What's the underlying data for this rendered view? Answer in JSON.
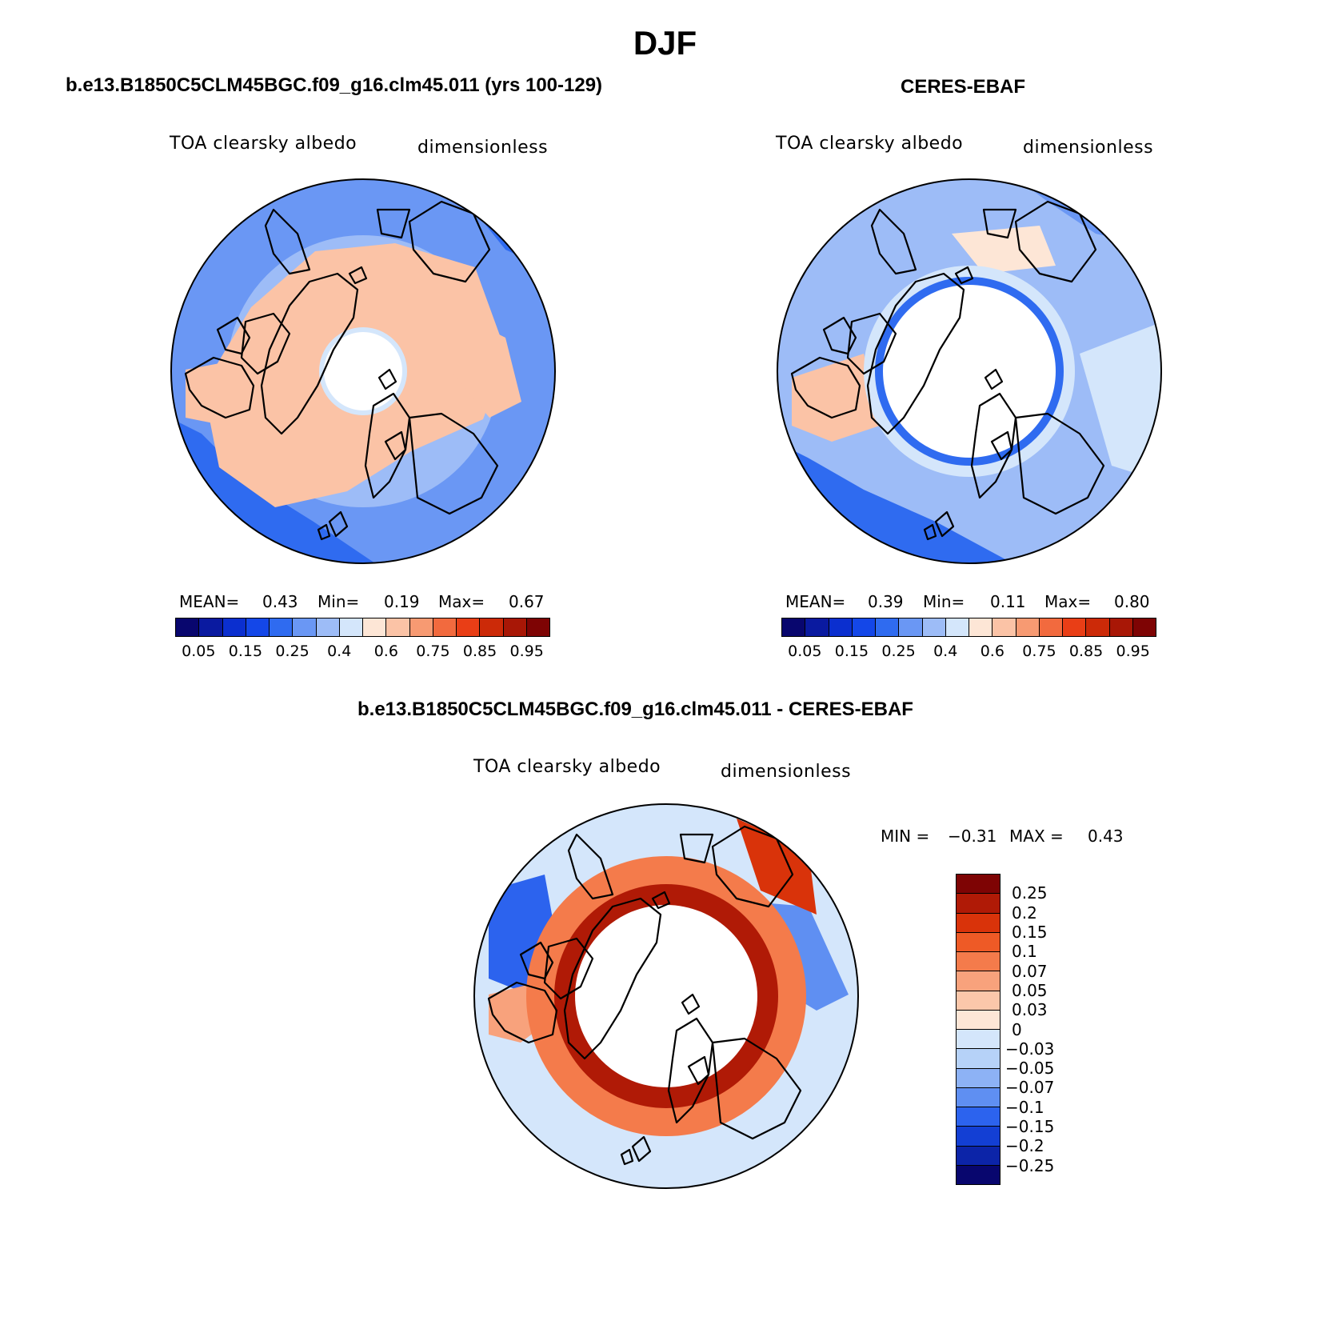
{
  "page": {
    "title": "DJF"
  },
  "chart_data": [
    {
      "type": "heatmap",
      "projection": "north polar stereographic",
      "title": "b.e13.B1850C5CLM45BGC.f09_g16.clm45.011 (yrs 100-129)",
      "variable": "TOA clearsky albedo",
      "units": "dimensionless",
      "stats": {
        "mean_label": "MEAN=",
        "mean": "0.43",
        "min_label": "Min=",
        "min": "0.19",
        "max_label": "Max=",
        "max": "0.67"
      },
      "colorbar": {
        "orientation": "horizontal",
        "levels": [
          0.05,
          0.1,
          0.15,
          0.2,
          0.25,
          0.3,
          0.4,
          0.5,
          0.6,
          0.7,
          0.75,
          0.8,
          0.85,
          0.9,
          0.95
        ],
        "tick_labels": [
          "0.05",
          "0.15",
          "0.25",
          "0.4",
          "0.6",
          "0.75",
          "0.85",
          "0.95"
        ],
        "colors": [
          "#08066e",
          "#0a1aa0",
          "#0b2fcf",
          "#1447e8",
          "#2f6bf0",
          "#6a97f4",
          "#9dbcf7",
          "#d4e6fb",
          "#fde6d6",
          "#fbc3a6",
          "#f79a72",
          "#f26a3e",
          "#e93e16",
          "#cc2a08",
          "#a81706",
          "#7e0404"
        ]
      }
    },
    {
      "type": "heatmap",
      "projection": "north polar stereographic",
      "title": "CERES-EBAF",
      "variable": "TOA clearsky albedo",
      "units": "dimensionless",
      "stats": {
        "mean_label": "MEAN=",
        "mean": "0.39",
        "min_label": "Min=",
        "min": "0.11",
        "max_label": "Max=",
        "max": "0.80"
      },
      "colorbar": {
        "orientation": "horizontal",
        "levels": [
          0.05,
          0.1,
          0.15,
          0.2,
          0.25,
          0.3,
          0.4,
          0.5,
          0.6,
          0.7,
          0.75,
          0.8,
          0.85,
          0.9,
          0.95
        ],
        "tick_labels": [
          "0.05",
          "0.15",
          "0.25",
          "0.4",
          "0.6",
          "0.75",
          "0.85",
          "0.95"
        ],
        "colors": [
          "#08066e",
          "#0a1aa0",
          "#0b2fcf",
          "#1447e8",
          "#2f6bf0",
          "#6a97f4",
          "#9dbcf7",
          "#d4e6fb",
          "#fde6d6",
          "#fbc3a6",
          "#f79a72",
          "#f26a3e",
          "#e93e16",
          "#cc2a08",
          "#a81706",
          "#7e0404"
        ]
      }
    },
    {
      "type": "heatmap",
      "projection": "north polar stereographic",
      "title": "b.e13.B1850C5CLM45BGC.f09_g16.clm45.011 - CERES-EBAF",
      "variable": "TOA clearsky albedo",
      "units": "dimensionless",
      "stats": {
        "min_label": "MIN =",
        "min": "−0.31",
        "max_label": "MAX =",
        "max": "0.43"
      },
      "colorbar": {
        "orientation": "vertical",
        "levels": [
          0.25,
          0.2,
          0.15,
          0.1,
          0.07,
          0.05,
          0.03,
          0,
          -0.03,
          -0.05,
          -0.07,
          -0.1,
          -0.15,
          -0.2,
          -0.25
        ],
        "tick_labels": [
          "0.25",
          "0.2",
          "0.15",
          "0.1",
          "0.07",
          "0.05",
          "0.03",
          "0",
          "−0.03",
          "−0.05",
          "−0.07",
          "−0.1",
          "−0.15",
          "−0.2",
          "−0.25"
        ],
        "colors": [
          "#7e0404",
          "#b01a06",
          "#d9330a",
          "#ee5a26",
          "#f47b4b",
          "#f8a27c",
          "#fbc7aa",
          "#fde6d6",
          "#d4e6fb",
          "#b6d2f8",
          "#8db2f5",
          "#5f8ff2",
          "#2c63ee",
          "#133fd4",
          "#0c24a8",
          "#08066e"
        ]
      }
    }
  ]
}
